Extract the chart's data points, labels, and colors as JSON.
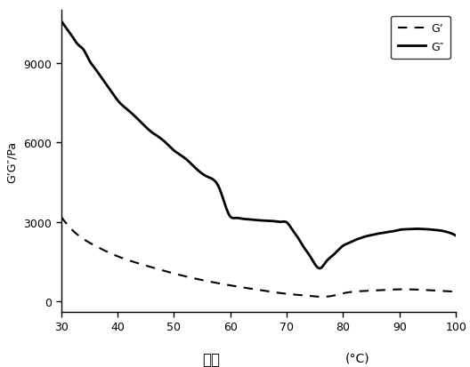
{
  "title": "",
  "xlabel_chinese": "温度",
  "xlabel_unit": "(°C)",
  "ylabel": "G’G″/Pa",
  "xlim": [
    30,
    100
  ],
  "ylim": [
    -400,
    11000
  ],
  "yticks": [
    0,
    3000,
    6000,
    9000
  ],
  "xticks": [
    30,
    40,
    50,
    60,
    70,
    80,
    90,
    100
  ],
  "legend_G_prime": "G’",
  "legend_G_double_prime": "G″",
  "G_prime_x": [
    30,
    33,
    36,
    40,
    45,
    50,
    55,
    60,
    65,
    70,
    73,
    75,
    78,
    80,
    85,
    90,
    95,
    100
  ],
  "G_prime_y": [
    3200,
    2500,
    2100,
    1700,
    1350,
    1050,
    800,
    600,
    430,
    280,
    220,
    180,
    200,
    300,
    400,
    450,
    420,
    360
  ],
  "G_double_prime_x": [
    30,
    31,
    32,
    33,
    34,
    35,
    36,
    37,
    38,
    39,
    40,
    42,
    44,
    46,
    48,
    50,
    52,
    54,
    56,
    58,
    60,
    61,
    62,
    63,
    64,
    65,
    66,
    67,
    68,
    69,
    70,
    71,
    72,
    73,
    74,
    75,
    76,
    77,
    78,
    79,
    80,
    81,
    82,
    83,
    84,
    85,
    86,
    87,
    88,
    89,
    90,
    91,
    92,
    93,
    94,
    95,
    96,
    97,
    98,
    99,
    100
  ],
  "G_double_prime_y": [
    10600,
    10300,
    10000,
    9700,
    9500,
    9100,
    8800,
    8500,
    8200,
    7900,
    7600,
    7200,
    6800,
    6400,
    6100,
    5700,
    5400,
    5000,
    4700,
    4300,
    3200,
    3150,
    3120,
    3100,
    3080,
    3060,
    3050,
    3040,
    3020,
    3000,
    2980,
    2700,
    2400,
    2050,
    1750,
    1400,
    1250,
    1500,
    1700,
    1900,
    2100,
    2200,
    2300,
    2380,
    2450,
    2500,
    2550,
    2580,
    2620,
    2650,
    2700,
    2720,
    2730,
    2740,
    2730,
    2720,
    2700,
    2680,
    2640,
    2580,
    2480
  ],
  "line_color": "#000000",
  "background_color": "#ffffff"
}
